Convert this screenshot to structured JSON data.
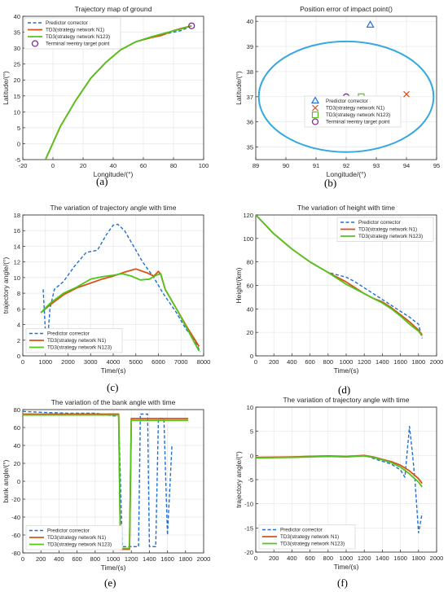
{
  "colors": {
    "predictor": "#1f6fd6",
    "n1": "#d95319",
    "n123": "#52c41a",
    "target": "#7e2f8e",
    "ellipse": "#35a8e0",
    "grid": "#e6e6e6",
    "axis": "#262626"
  },
  "panel_labels": [
    "(a)",
    "(b)",
    "(c)",
    "(d)",
    "(e)",
    "(f)"
  ],
  "chart_data": [
    {
      "id": "a",
      "type": "line",
      "title": "Trajectory map of ground",
      "xlabel": "Longitude/(°)",
      "ylabel": "Latitude/(°)",
      "xlim": [
        -20,
        100
      ],
      "ylim": [
        -5,
        40
      ],
      "xticks": [
        -20,
        0,
        20,
        40,
        60,
        80,
        100
      ],
      "yticks": [
        -5,
        0,
        5,
        10,
        15,
        20,
        25,
        30,
        35,
        40
      ],
      "grid": true,
      "legend_position": "top-left",
      "series": [
        {
          "name": "Predictor corrector",
          "style": "dashed",
          "color_key": "predictor",
          "x": [
            -5,
            5,
            15,
            25,
            35,
            45,
            55,
            65,
            75,
            85,
            92
          ],
          "y": [
            -5,
            5.5,
            13.5,
            20.5,
            25.5,
            29.5,
            32,
            33.5,
            34.5,
            35.5,
            37
          ]
        },
        {
          "name": "TD3(strategy network N1)",
          "style": "solid",
          "color_key": "n1",
          "x": [
            -5,
            5,
            15,
            25,
            35,
            45,
            55,
            65,
            72,
            80,
            86,
            92
          ],
          "y": [
            -5,
            5.5,
            13.5,
            20.5,
            25.5,
            29.5,
            32,
            33.3,
            34,
            35.5,
            36.3,
            37
          ]
        },
        {
          "name": "TD3(strategy network N123)",
          "style": "solid",
          "color_key": "n123",
          "x": [
            -5,
            5,
            15,
            25,
            35,
            45,
            55,
            65,
            75,
            85,
            92
          ],
          "y": [
            -5,
            5.5,
            13.5,
            20.5,
            25.5,
            29.5,
            32,
            33.5,
            34.8,
            36,
            37
          ]
        },
        {
          "name": "Terminal reentry target point",
          "style": "marker-circle",
          "color_key": "target",
          "x": [
            92
          ],
          "y": [
            37
          ]
        }
      ]
    },
    {
      "id": "b",
      "type": "scatter",
      "title": "Position error of impact point()",
      "xlabel": "Longitude/(°)",
      "ylabel": "Latitude/(°)",
      "xlim": [
        89,
        95
      ],
      "ylim": [
        34.5,
        40.2
      ],
      "xticks": [
        89,
        90,
        91,
        92,
        93,
        94,
        95
      ],
      "yticks": [
        35,
        36,
        37,
        38,
        39,
        40
      ],
      "grid": true,
      "legend_position": "bottom-center",
      "ellipse": {
        "cx": 92,
        "cy": 37,
        "rx": 2.9,
        "ry": 2.2
      },
      "series": [
        {
          "name": "Predictor corrector",
          "marker": "triangle",
          "color_key": "predictor",
          "x": [
            92.8
          ],
          "y": [
            39.85
          ]
        },
        {
          "name": "TD3(strategy network N1)",
          "marker": "x",
          "color_key": "n1",
          "x": [
            94
          ],
          "y": [
            37.1
          ]
        },
        {
          "name": "TD3(strategy network N123)",
          "marker": "square",
          "color_key": "n123",
          "x": [
            92.5
          ],
          "y": [
            37
          ]
        },
        {
          "name": "Terminal reentry target point",
          "marker": "circle",
          "color_key": "target",
          "x": [
            92
          ],
          "y": [
            37
          ]
        }
      ]
    },
    {
      "id": "c",
      "type": "line",
      "title": "The variation of trajectory angle with time",
      "xlabel": "Time/(s)",
      "ylabel": "trajectory angle/(°)",
      "xlim": [
        0,
        8000
      ],
      "ylim": [
        0,
        18
      ],
      "xticks": [
        0,
        1000,
        2000,
        3000,
        4000,
        5000,
        6000,
        7000,
        8000
      ],
      "yticks": [
        0,
        2,
        4,
        6,
        8,
        10,
        12,
        14,
        16,
        18
      ],
      "grid": true,
      "legend_position": "bottom-left",
      "series": [
        {
          "name": "Predictor corrector",
          "style": "dashed",
          "color_key": "predictor",
          "x": [
            900,
            1000,
            1100,
            1200,
            1400,
            1800,
            2300,
            2800,
            3300,
            3700,
            4000,
            4200,
            4500,
            4900,
            5300,
            5800,
            6200,
            6800,
            7200,
            7600,
            7850
          ],
          "y": [
            8.5,
            3,
            2,
            6,
            8.5,
            9.5,
            11.5,
            13.2,
            13.5,
            15.5,
            16.7,
            16.8,
            16,
            14,
            12,
            10,
            8,
            5.5,
            3.5,
            2,
            0.5
          ]
        },
        {
          "name": "TD3(strategy network N1)",
          "style": "solid",
          "color_key": "n1",
          "x": [
            800,
            1200,
            1800,
            2400,
            3000,
            3500,
            4000,
            4500,
            5000,
            5500,
            5800,
            6000,
            6100,
            6300,
            6800,
            7300,
            7800
          ],
          "y": [
            5.5,
            6.5,
            7.8,
            8.7,
            9.3,
            9.8,
            10.2,
            10.7,
            11.1,
            10.6,
            10.2,
            10.8,
            10.4,
            8.5,
            6,
            3.5,
            1.2
          ]
        },
        {
          "name": "TD3(strategy network N123)",
          "style": "solid",
          "color_key": "n123",
          "x": [
            800,
            1200,
            1800,
            2400,
            3000,
            3500,
            4000,
            4400,
            4800,
            5200,
            5600,
            5900,
            6100,
            6300,
            6800,
            7300,
            7800
          ],
          "y": [
            5.5,
            6.7,
            8,
            8.8,
            9.8,
            10.1,
            10.3,
            10.5,
            10.2,
            9.7,
            9.8,
            10.3,
            10.5,
            8.5,
            6,
            3.3,
            0.6
          ]
        }
      ]
    },
    {
      "id": "d",
      "type": "line",
      "title": "The variation of height with time",
      "xlabel": "Time/(s)",
      "ylabel": "Height/(km)",
      "xlim": [
        0,
        2000
      ],
      "ylim": [
        0,
        120
      ],
      "xticks": [
        0,
        200,
        400,
        600,
        800,
        1000,
        1200,
        1400,
        1600,
        1800,
        2000
      ],
      "yticks": [
        0,
        20,
        40,
        60,
        80,
        100,
        120
      ],
      "grid": true,
      "legend_position": "top-right",
      "series": [
        {
          "name": "Predictor corrector",
          "style": "dashed",
          "color_key": "predictor",
          "x": [
            0,
            200,
            400,
            600,
            800,
            900,
            1000,
            1100,
            1200,
            1300,
            1400,
            1500,
            1600,
            1700,
            1750,
            1800,
            1840
          ],
          "y": [
            120,
            104,
            91,
            80,
            71,
            69,
            67,
            63,
            58,
            53,
            48,
            43,
            38,
            33,
            30,
            27,
            15
          ]
        },
        {
          "name": "TD3(strategy network N1)",
          "style": "solid",
          "color_key": "n1",
          "x": [
            0,
            200,
            400,
            600,
            800,
            900,
            1000,
            1100,
            1200,
            1300,
            1400,
            1500,
            1600,
            1700,
            1800,
            1840
          ],
          "y": [
            120,
            104,
            91,
            80,
            71,
            67,
            63,
            58,
            53,
            49,
            46,
            41,
            35,
            29,
            22,
            18
          ]
        },
        {
          "name": "TD3(strategy network N123)",
          "style": "solid",
          "color_key": "n123",
          "x": [
            0,
            200,
            400,
            600,
            800,
            900,
            1000,
            1100,
            1200,
            1300,
            1400,
            1500,
            1600,
            1700,
            1800,
            1840
          ],
          "y": [
            120,
            104,
            91,
            80,
            71,
            66,
            61,
            57,
            53,
            49,
            45,
            40,
            34,
            27,
            21,
            17
          ]
        }
      ]
    },
    {
      "id": "e",
      "type": "line",
      "title": "The variation of the bank angle with time",
      "xlabel": "Time/(s)",
      "ylabel": "bank angle/(°)",
      "xlim": [
        0,
        2000
      ],
      "ylim": [
        -80,
        80
      ],
      "xticks": [
        0,
        200,
        400,
        600,
        800,
        1000,
        1200,
        1400,
        1600,
        1800,
        2000
      ],
      "yticks": [
        -80,
        -60,
        -40,
        -20,
        0,
        20,
        40,
        60,
        80
      ],
      "grid": true,
      "legend_position": "bottom-left",
      "series": [
        {
          "name": "Predictor corrector",
          "style": "dashed",
          "color_key": "predictor",
          "x": [
            0,
            200,
            500,
            800,
            1000,
            1060,
            1100,
            1200,
            1280,
            1300,
            1380,
            1400,
            1470,
            1500,
            1560,
            1600,
            1650
          ],
          "y": [
            78,
            77,
            76,
            76,
            73,
            73,
            -73,
            -73,
            -73,
            75,
            75,
            -73,
            -73,
            70,
            70,
            -60,
            40
          ]
        },
        {
          "name": "TD3(strategy network N1)",
          "style": "solid",
          "color_key": "n1",
          "x": [
            0,
            500,
            1000,
            1060,
            1080,
            1180,
            1200,
            1830
          ],
          "y": [
            75,
            75,
            75,
            75,
            -76,
            -76,
            70,
            70
          ]
        },
        {
          "name": "TD3(strategy network N123)",
          "style": "solid",
          "color_key": "n123",
          "x": [
            0,
            500,
            1000,
            1060,
            1080,
            1180,
            1200,
            1830
          ],
          "y": [
            74,
            74,
            74,
            74,
            -75,
            -75,
            68,
            68
          ]
        }
      ]
    },
    {
      "id": "f",
      "type": "line",
      "title": "The variation of trajectory angle with time",
      "xlabel": "Time/(s)",
      "ylabel": "trajectory angle/(°)",
      "xlim": [
        0,
        2000
      ],
      "ylim": [
        -20,
        10
      ],
      "xticks": [
        0,
        200,
        400,
        600,
        800,
        1000,
        1200,
        1400,
        1600,
        1800,
        2000
      ],
      "yticks": [
        -20,
        -15,
        -10,
        -5,
        0,
        5,
        10
      ],
      "grid": true,
      "legend_position": "bottom-left",
      "series": [
        {
          "name": "Predictor corrector",
          "style": "dashed",
          "color_key": "predictor",
          "x": [
            0,
            400,
            800,
            1000,
            1200,
            1300,
            1400,
            1500,
            1600,
            1650,
            1700,
            1730,
            1760,
            1800,
            1840
          ],
          "y": [
            -0.4,
            -0.3,
            -0.1,
            -0.3,
            0,
            -0.6,
            -1.2,
            -1.8,
            -3,
            -4.5,
            6,
            1,
            -5,
            -16,
            -12
          ]
        },
        {
          "name": "TD3(strategy network N1)",
          "style": "solid",
          "color_key": "n1",
          "x": [
            0,
            400,
            800,
            1000,
            1200,
            1300,
            1400,
            1500,
            1600,
            1700,
            1800,
            1840
          ],
          "y": [
            -0.4,
            -0.3,
            -0.1,
            -0.2,
            0,
            -0.3,
            -0.8,
            -1.3,
            -2,
            -3.2,
            -4.8,
            -5.8
          ]
        },
        {
          "name": "TD3(strategy network N123)",
          "style": "solid",
          "color_key": "n123",
          "x": [
            0,
            400,
            800,
            1000,
            1200,
            1300,
            1400,
            1500,
            1600,
            1700,
            1800,
            1840
          ],
          "y": [
            -0.5,
            -0.4,
            -0.2,
            -0.3,
            -0.1,
            -0.4,
            -0.9,
            -1.5,
            -2.4,
            -3.8,
            -5.5,
            -6.5
          ]
        }
      ]
    }
  ]
}
